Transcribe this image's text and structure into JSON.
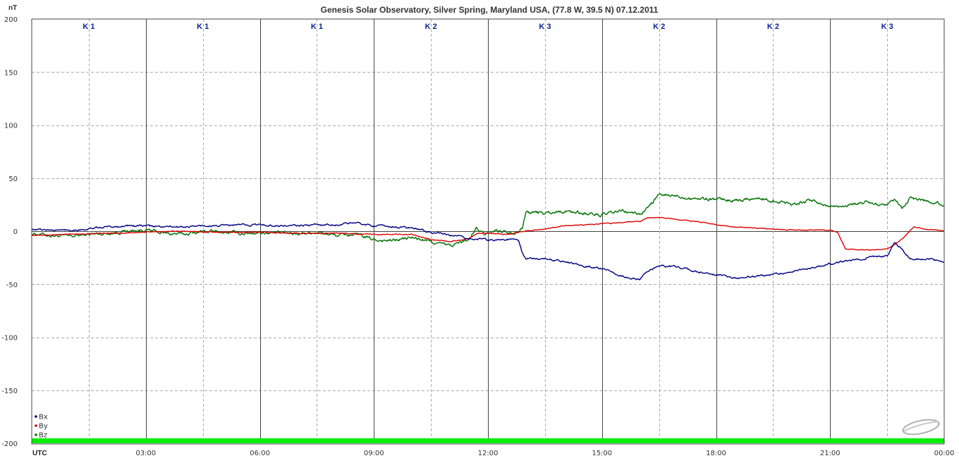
{
  "chart_data": {
    "type": "line",
    "title": "Genesis Solar Observatory, Silver Spring, Maryland USA, (77.8 W, 39.5 N)  07.12.2011",
    "ylabel": "nT",
    "xlabel": "UTC",
    "ylim": [
      -200,
      200
    ],
    "yticks": [
      "200",
      "150",
      "100",
      "50",
      "0",
      "-50",
      "-100",
      "-150",
      "-200"
    ],
    "xlim_hours": [
      0,
      24
    ],
    "xticks": [
      "03:00",
      "06:00",
      "09:00",
      "12:00",
      "15:00",
      "18:00",
      "21:00",
      "00:00"
    ],
    "grid": true,
    "legend_position": "bottom-left",
    "k_index": [
      "K 1",
      "K 1",
      "K 1",
      "K 2",
      "K 3",
      "K 2",
      "K 2",
      "K 3"
    ],
    "series": [
      {
        "name": "Bx",
        "color": "#000080",
        "points": [
          [
            0,
            2
          ],
          [
            0.5,
            1
          ],
          [
            1,
            1
          ],
          [
            1.5,
            2
          ],
          [
            2,
            4
          ],
          [
            2.5,
            5
          ],
          [
            3,
            5
          ],
          [
            3.5,
            4
          ],
          [
            4,
            4
          ],
          [
            4.5,
            5
          ],
          [
            5,
            5
          ],
          [
            5.5,
            6
          ],
          [
            6,
            6
          ],
          [
            6.5,
            5
          ],
          [
            7,
            5
          ],
          [
            7.5,
            6
          ],
          [
            8,
            6
          ],
          [
            8.5,
            8
          ],
          [
            9,
            5
          ],
          [
            9.5,
            4
          ],
          [
            10,
            3
          ],
          [
            10.5,
            -1
          ],
          [
            11,
            -4
          ],
          [
            11.5,
            -7
          ],
          [
            12,
            -8
          ],
          [
            12.5,
            -8
          ],
          [
            12.8,
            -8
          ],
          [
            12.9,
            -20
          ],
          [
            13,
            -26
          ],
          [
            13.5,
            -26
          ],
          [
            14,
            -28
          ],
          [
            14.5,
            -33
          ],
          [
            15,
            -35
          ],
          [
            15.5,
            -42
          ],
          [
            16,
            -46
          ],
          [
            16.2,
            -38
          ],
          [
            16.5,
            -33
          ],
          [
            17,
            -34
          ],
          [
            17.5,
            -38
          ],
          [
            18,
            -41
          ],
          [
            18.5,
            -44
          ],
          [
            19,
            -43
          ],
          [
            19.5,
            -41
          ],
          [
            20,
            -38
          ],
          [
            20.5,
            -34
          ],
          [
            21,
            -31
          ],
          [
            21.5,
            -28
          ],
          [
            22,
            -25
          ],
          [
            22.5,
            -24
          ],
          [
            22.7,
            -11
          ],
          [
            22.9,
            -17
          ],
          [
            23.1,
            -26
          ],
          [
            23.5,
            -26
          ],
          [
            24,
            -28
          ]
        ]
      },
      {
        "name": "By",
        "color": "#dd0000",
        "points": [
          [
            0,
            -4
          ],
          [
            1,
            -3
          ],
          [
            2,
            -2
          ],
          [
            3,
            -1
          ],
          [
            4,
            0
          ],
          [
            5,
            -1
          ],
          [
            6,
            -1
          ],
          [
            7,
            -2
          ],
          [
            8,
            -2
          ],
          [
            9,
            -3
          ],
          [
            9.5,
            -3
          ],
          [
            10,
            -3
          ],
          [
            10.5,
            -8
          ],
          [
            11,
            -10
          ],
          [
            11.5,
            -7
          ],
          [
            11.7,
            -2
          ],
          [
            12,
            -2
          ],
          [
            12.5,
            -3
          ],
          [
            13,
            0
          ],
          [
            13.5,
            2
          ],
          [
            14,
            5
          ],
          [
            14.5,
            6
          ],
          [
            15,
            7
          ],
          [
            15.5,
            8
          ],
          [
            16,
            9
          ],
          [
            16.2,
            13
          ],
          [
            16.5,
            13
          ],
          [
            17,
            11
          ],
          [
            17.5,
            9
          ],
          [
            18,
            6
          ],
          [
            18.5,
            4
          ],
          [
            19,
            3
          ],
          [
            19.5,
            2
          ],
          [
            20,
            1
          ],
          [
            20.5,
            1
          ],
          [
            21,
            1
          ],
          [
            21.2,
            -1
          ],
          [
            21.4,
            -17
          ],
          [
            22,
            -18
          ],
          [
            22.5,
            -17
          ],
          [
            22.8,
            -10
          ],
          [
            23,
            -4
          ],
          [
            23.2,
            4
          ],
          [
            23.5,
            2
          ],
          [
            24,
            0
          ]
        ]
      },
      {
        "name": "Bz",
        "color": "#007000",
        "points": [
          [
            0,
            -2
          ],
          [
            0.5,
            -4
          ],
          [
            1,
            -5
          ],
          [
            1.5,
            -3
          ],
          [
            2,
            -2
          ],
          [
            2.5,
            0
          ],
          [
            3,
            1
          ],
          [
            3.5,
            -2
          ],
          [
            4,
            -3
          ],
          [
            4.5,
            0
          ],
          [
            5,
            -1
          ],
          [
            5.5,
            -2
          ],
          [
            6,
            -1
          ],
          [
            6.5,
            -2
          ],
          [
            7,
            -2
          ],
          [
            7.5,
            -1
          ],
          [
            8,
            -4
          ],
          [
            8.5,
            -3
          ],
          [
            9,
            -8
          ],
          [
            9.5,
            -9
          ],
          [
            10,
            -6
          ],
          [
            10.5,
            -10
          ],
          [
            11,
            -14
          ],
          [
            11.5,
            -8
          ],
          [
            11.7,
            3
          ],
          [
            11.9,
            -4
          ],
          [
            12.2,
            1
          ],
          [
            12.7,
            -1
          ],
          [
            12.9,
            3
          ],
          [
            13,
            18
          ],
          [
            13.5,
            17
          ],
          [
            14,
            19
          ],
          [
            14.5,
            17
          ],
          [
            15,
            15
          ],
          [
            15.5,
            19
          ],
          [
            16,
            16
          ],
          [
            16.2,
            22
          ],
          [
            16.5,
            34
          ],
          [
            17,
            33
          ],
          [
            17.5,
            31
          ],
          [
            18,
            30
          ],
          [
            18.5,
            29
          ],
          [
            19,
            31
          ],
          [
            19.5,
            29
          ],
          [
            20,
            26
          ],
          [
            20.5,
            29
          ],
          [
            21,
            23
          ],
          [
            21.5,
            25
          ],
          [
            22,
            27
          ],
          [
            22.5,
            23
          ],
          [
            22.7,
            30
          ],
          [
            22.9,
            20
          ],
          [
            23.1,
            31
          ],
          [
            23.5,
            29
          ],
          [
            24,
            25
          ]
        ]
      }
    ]
  }
}
